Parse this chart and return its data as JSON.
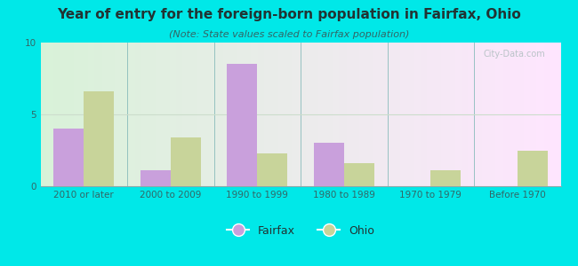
{
  "title": "Year of entry for the foreign-born population in Fairfax, Ohio",
  "subtitle": "(Note: State values scaled to Fairfax population)",
  "categories": [
    "2010 or later",
    "2000 to 2009",
    "1990 to 1999",
    "1980 to 1989",
    "1970 to 1979",
    "Before 1970"
  ],
  "fairfax_values": [
    4.0,
    1.1,
    8.5,
    3.0,
    0,
    0
  ],
  "ohio_values": [
    6.6,
    3.4,
    2.3,
    1.6,
    1.1,
    2.5
  ],
  "fairfax_color": "#c9a0dc",
  "ohio_color": "#c8d49a",
  "background_outer": "#00e8e8",
  "ylim": [
    0,
    10
  ],
  "yticks": [
    0,
    5,
    10
  ],
  "bar_width": 0.35,
  "title_fontsize": 11,
  "subtitle_fontsize": 8,
  "tick_fontsize": 7.5,
  "legend_fontsize": 9,
  "watermark": "City-Data.com"
}
